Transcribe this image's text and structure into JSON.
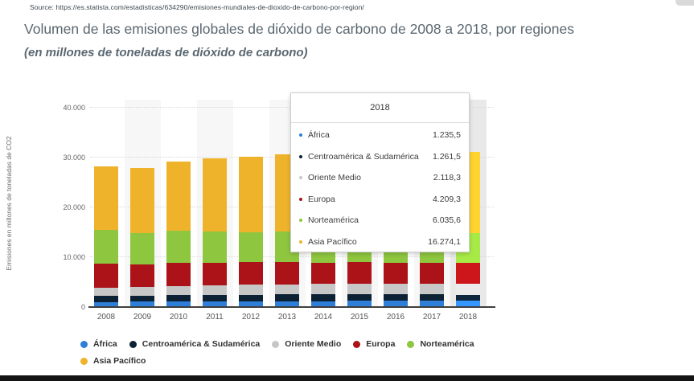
{
  "source_line": "Source: https://es.statista.com/estadisticas/634290/emisiones-mundiales-de-dioxido-de-carbono-por-region/",
  "title": "Volumen de las emisiones globales de dióxido de carbono de 2008 a 2018, por regiones",
  "subtitle": "(en millones de toneladas de dióxido de carbono)",
  "colors": {
    "africa": "#2F7FD8",
    "centroamerica_sudamerica": "#0C2134",
    "oriente_medio": "#C7C7C7",
    "europa": "#AB1318",
    "norteamerica": "#8EC63F",
    "asia_pacifico": "#EEB32B",
    "stripe": "#f7f7f7",
    "stripe_highlight": "#e9e9e9"
  },
  "chart_data": {
    "type": "bar",
    "stacked": true,
    "title": "Volumen de las emisiones globales de dióxido de carbono de 2008 a 2018, por regiones",
    "ylabel": "Emisiones en millones de toneladas de CO2",
    "xlabel": "",
    "ylim": [
      0,
      40000
    ],
    "grid": true,
    "legend_position": "bottom",
    "categories": [
      "2008",
      "2009",
      "2010",
      "2011",
      "2012",
      "2013",
      "2014",
      "2015",
      "2016",
      "2017",
      "2018"
    ],
    "y_tick_labels": [
      "0",
      "10.000",
      "20.000",
      "30.000",
      "40.000"
    ],
    "y_tick_values": [
      0,
      10000,
      20000,
      30000,
      40000
    ],
    "highlighted_category": "2018",
    "series": [
      {
        "name": "África",
        "color": "#2F7FD8",
        "values": [
          1050,
          1070,
          1100,
          1130,
          1170,
          1190,
          1210,
          1220,
          1220,
          1230,
          1235.5
        ]
      },
      {
        "name": "Centroamérica & Sudamérica",
        "color": "#0C2134",
        "values": [
          1230,
          1220,
          1280,
          1310,
          1330,
          1350,
          1360,
          1350,
          1310,
          1290,
          1261.5
        ]
      },
      {
        "name": "Oriente Medio",
        "color": "#C7C7C7",
        "values": [
          1650,
          1750,
          1830,
          1880,
          1980,
          2000,
          2060,
          2110,
          2090,
          2100,
          2118.3
        ]
      },
      {
        "name": "Europa",
        "color": "#AB1318",
        "values": [
          4850,
          4520,
          4670,
          4560,
          4500,
          4420,
          4250,
          4280,
          4280,
          4330,
          4209.3
        ]
      },
      {
        "name": "Norteamérica",
        "color": "#8EC63F",
        "values": [
          6650,
          6220,
          6430,
          6330,
          6080,
          6230,
          6280,
          6150,
          6050,
          6010,
          6035.6
        ]
      },
      {
        "name": "Asia Pacífico",
        "color": "#EEB32B",
        "values": [
          12750,
          13050,
          13900,
          14700,
          15050,
          15420,
          15500,
          15420,
          15420,
          15700,
          16274.1
        ]
      }
    ]
  },
  "tooltip": {
    "header": "2018",
    "rows": [
      {
        "label": "África",
        "value": "1.235,5",
        "color": "#2F7FD8"
      },
      {
        "label": "Centroamérica & Sudamérica",
        "value": "1.261,5",
        "color": "#0C2134"
      },
      {
        "label": "Oriente Medio",
        "value": "2.118,3",
        "color": "#C7C7C7"
      },
      {
        "label": "Europa",
        "value": "4.209,3",
        "color": "#AB1318"
      },
      {
        "label": "Norteamérica",
        "value": "6.035,6",
        "color": "#8EC63F"
      },
      {
        "label": "Asia Pacífico",
        "value": "16.274,1",
        "color": "#EEB32B"
      }
    ]
  },
  "legend": {
    "items": [
      {
        "label": "África",
        "color": "#2F7FD8"
      },
      {
        "label": "Centroamérica & Sudamérica",
        "color": "#0C2134"
      },
      {
        "label": "Oriente Medio",
        "color": "#C7C7C7"
      },
      {
        "label": "Europa",
        "color": "#AB1318"
      },
      {
        "label": "Norteamérica",
        "color": "#8EC63F"
      },
      {
        "label": "Asia Pacífico",
        "color": "#EEB32B"
      }
    ]
  }
}
